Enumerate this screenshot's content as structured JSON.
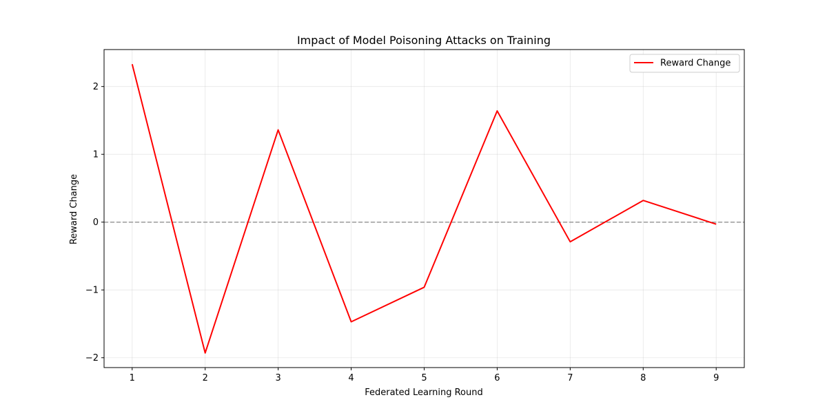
{
  "chart_data": {
    "type": "line",
    "title": "Impact of Model Poisoning Attacks on Training",
    "xlabel": "Federated Learning Round",
    "ylabel": "Reward Change",
    "x": [
      1,
      2,
      3,
      4,
      5,
      6,
      7,
      8,
      9
    ],
    "series": [
      {
        "name": "Reward Change",
        "color": "#ff0000",
        "values": [
          2.33,
          -1.93,
          1.36,
          -1.47,
          -0.96,
          1.64,
          -0.29,
          0.32,
          -0.03
        ]
      }
    ],
    "xticks": [
      1,
      2,
      3,
      4,
      5,
      6,
      7,
      8,
      9
    ],
    "yticks": [
      -2,
      -1,
      0,
      1,
      2
    ],
    "ytick_labels": [
      "−2",
      "−1",
      "0",
      "1",
      "2"
    ],
    "xlim": [
      0.615,
      9.385
    ],
    "ylim": [
      -2.145,
      2.545
    ],
    "reference_line": {
      "y": 0,
      "style": "dashed",
      "color": "#999999"
    },
    "grid": true,
    "legend": {
      "position": "top-right"
    }
  }
}
